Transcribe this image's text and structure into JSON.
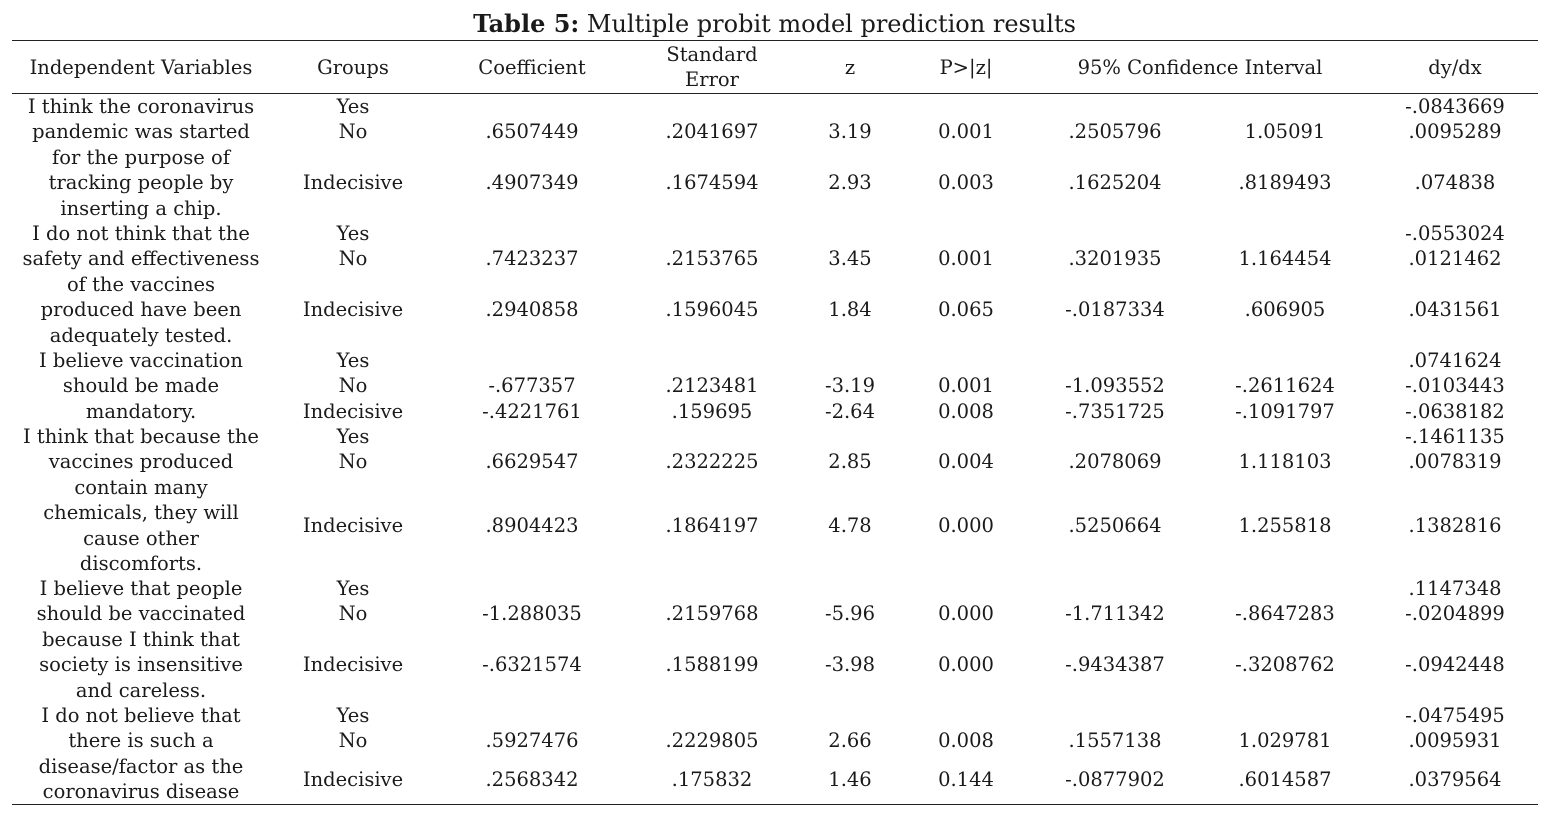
{
  "table": {
    "title_bold": "Table 5:",
    "title_rest": " Multiple probit model prediction results",
    "headers": {
      "var": "Independent Variables",
      "group": "Groups",
      "coef": "Coefficient",
      "se_line1": "Standard",
      "se_line2": "Error",
      "z": "z",
      "p": "P>|z|",
      "ci": "95% Confidence Interval",
      "dy": "dy/dx"
    },
    "blocks": [
      {
        "variable": "I think the coronavirus pandemic was started for the purpose of tracking people by inserting a chip.",
        "rows": [
          {
            "group": "Yes",
            "coef": "",
            "se": "",
            "z": "",
            "p": "",
            "ci_low": "",
            "ci_high": "",
            "dydx": "-.0843669"
          },
          {
            "group": "No",
            "coef": ".6507449",
            "se": ".2041697",
            "z": "3.19",
            "p": "0.001",
            "ci_low": ".2505796",
            "ci_high": "1.05091",
            "dydx": ".0095289"
          },
          {
            "group": "Indecisive",
            "coef": ".4907349",
            "se": ".1674594",
            "z": "2.93",
            "p": "0.003",
            "ci_low": ".1625204",
            "ci_high": ".8189493",
            "dydx": ".074838"
          }
        ]
      },
      {
        "variable": "I do not think that the safety and effectiveness of the vaccines produced have been adequately tested.",
        "rows": [
          {
            "group": "Yes",
            "coef": "",
            "se": "",
            "z": "",
            "p": "",
            "ci_low": "",
            "ci_high": "",
            "dydx": "-.0553024"
          },
          {
            "group": "No",
            "coef": ".7423237",
            "se": ".2153765",
            "z": "3.45",
            "p": "0.001",
            "ci_low": ".3201935",
            "ci_high": "1.164454",
            "dydx": ".0121462"
          },
          {
            "group": "Indecisive",
            "coef": ".2940858",
            "se": ".1596045",
            "z": "1.84",
            "p": "0.065",
            "ci_low": "-.0187334",
            "ci_high": ".606905",
            "dydx": ".0431561"
          }
        ]
      },
      {
        "variable": "I believe vaccination should be made mandatory.",
        "rows": [
          {
            "group": "Yes",
            "coef": "",
            "se": "",
            "z": "",
            "p": "",
            "ci_low": "",
            "ci_high": "",
            "dydx": ".0741624"
          },
          {
            "group": "No",
            "coef": "-.677357",
            "se": ".2123481",
            "z": "-3.19",
            "p": "0.001",
            "ci_low": "-1.093552",
            "ci_high": "-.2611624",
            "dydx": "-.0103443"
          },
          {
            "group": "Indecisive",
            "coef": "-.4221761",
            "se": ".159695",
            "z": "-2.64",
            "p": "0.008",
            "ci_low": "-.7351725",
            "ci_high": "-.1091797",
            "dydx": "-.0638182"
          }
        ]
      },
      {
        "variable": "I think that because the vaccines produced contain many chemicals, they will cause other discomforts.",
        "rows": [
          {
            "group": "Yes",
            "coef": "",
            "se": "",
            "z": "",
            "p": "",
            "ci_low": "",
            "ci_high": "",
            "dydx": "-.1461135"
          },
          {
            "group": "No",
            "coef": ".6629547",
            "se": ".2322225",
            "z": "2.85",
            "p": "0.004",
            "ci_low": ".2078069",
            "ci_high": "1.118103",
            "dydx": ".0078319"
          },
          {
            "group": "Indecisive",
            "coef": ".8904423",
            "se": ".1864197",
            "z": "4.78",
            "p": "0.000",
            "ci_low": ".5250664",
            "ci_high": "1.255818",
            "dydx": ".1382816"
          }
        ]
      },
      {
        "variable": "I believe that people should be vaccinated because I think that society is insensitive and careless.",
        "rows": [
          {
            "group": "Yes",
            "coef": "",
            "se": "",
            "z": "",
            "p": "",
            "ci_low": "",
            "ci_high": "",
            "dydx": ".1147348"
          },
          {
            "group": "No",
            "coef": "-1.288035",
            "se": ".2159768",
            "z": "-5.96",
            "p": "0.000",
            "ci_low": "-1.711342",
            "ci_high": "-.8647283",
            "dydx": "-.0204899"
          },
          {
            "group": "Indecisive",
            "coef": "-.6321574",
            "se": ".1588199",
            "z": "-3.98",
            "p": "0.000",
            "ci_low": "-.9434387",
            "ci_high": "-.3208762",
            "dydx": "-.0942448"
          }
        ]
      },
      {
        "variable": "I do not believe that there is such a disease/factor as the coronavirus disease",
        "rows": [
          {
            "group": "Yes",
            "coef": "",
            "se": "",
            "z": "",
            "p": "",
            "ci_low": "",
            "ci_high": "",
            "dydx": "-.0475495"
          },
          {
            "group": "No",
            "coef": ".5927476",
            "se": ".2229805",
            "z": "2.66",
            "p": "0.008",
            "ci_low": ".1557138",
            "ci_high": "1.029781",
            "dydx": ".0095931"
          },
          {
            "group": "Indecisive",
            "coef": ".2568342",
            "se": ".175832",
            "z": "1.46",
            "p": "0.144",
            "ci_low": "-.0877902",
            "ci_high": ".6014587",
            "dydx": ".0379564"
          }
        ]
      }
    ]
  }
}
